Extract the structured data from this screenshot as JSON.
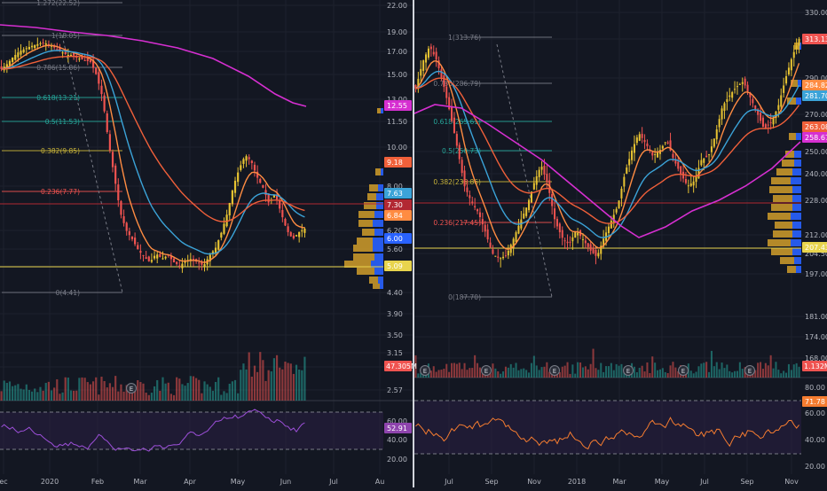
{
  "colors": {
    "bg": "#131722",
    "grid": "#1e222d",
    "divider": "#d1d4dc",
    "axisText": "#b2b5be",
    "up": "#26a69a",
    "down": "#ef5350",
    "candle_up": "#e6c232",
    "candle_down": "#ef5350",
    "ema_fast": "#ff8c42",
    "ema_mid": "#f0603a",
    "ema_slow": "#3ba3d8",
    "ma_long": "#d62fd1",
    "fib": "#787b86",
    "vp_up": "#c6962a",
    "vp_down": "#2962ff",
    "rsi": "#7e57c2",
    "rsi_band": "#2a1f44",
    "rsi_line_right": "#f57c30",
    "hline_red": "#b22833",
    "hline_yellow": "#e8d44d"
  },
  "icons": {
    "earnings": "earnings-e-icon"
  },
  "chart_data": [
    {
      "type": "candlestick",
      "name": "",
      "x_ticks": [
        "ec",
        "2020",
        "Feb",
        "Mar",
        "Apr",
        "May",
        "Jun",
        "Jul",
        "Au"
      ],
      "y_ticks": [
        "22.00",
        "19.00",
        "17.00",
        "15.00",
        "13.00",
        "11.50",
        "10.00",
        "8.00",
        "7.00",
        "6.20",
        "5.60",
        "5.00",
        "4.40",
        "3.90",
        "3.50",
        "3.15",
        "2.85",
        "2.57"
      ],
      "rsi_ticks": [
        "60.00",
        "40.00",
        "20.00"
      ],
      "fib_levels": [
        {
          "label": "1.272(22.52)",
          "value": 22.52
        },
        {
          "label": "1(18.05)",
          "value": 18.05
        },
        {
          "label": "0.786(15.86)",
          "value": 15.86
        },
        {
          "label": "0.618(13.21)",
          "value": 13.21
        },
        {
          "label": "0.5(11.53)",
          "value": 11.53
        },
        {
          "label": "0.382(9.85)",
          "value": 9.85
        },
        {
          "label": "0.236(7.77)",
          "value": 7.77
        },
        {
          "label": "0(4.41)",
          "value": 4.41
        }
      ],
      "price_badges": [
        {
          "text": "12.55",
          "color": "#d62fd1"
        },
        {
          "text": "9.18",
          "color": "#f0603a"
        },
        {
          "text": "7.63",
          "color": "#3ba3d8"
        },
        {
          "text": "7.30",
          "color": "#b22833"
        },
        {
          "text": "6.84",
          "color": "#ff8c42"
        },
        {
          "text": "6.00",
          "color": "#2962ff"
        },
        {
          "text": "5.09",
          "color": "#e8d44d"
        }
      ],
      "volume_badge": "47.305M",
      "rsi_badge": "52.91",
      "earnings_count": 1
    },
    {
      "type": "candlestick",
      "name": "",
      "x_ticks": [
        "Jul",
        "Sep",
        "Nov",
        "2018",
        "Mar",
        "May",
        "Jul",
        "Sep",
        "Nov"
      ],
      "y_ticks": [
        "330.00",
        "310.00",
        "290.00",
        "270.00",
        "250.00",
        "240.00",
        "228.00",
        "212.00",
        "204.50",
        "197.00",
        "181.00",
        "174.00",
        "168.00"
      ],
      "rsi_ticks": [
        "80.00",
        "60.00",
        "40.00",
        "20.00"
      ],
      "fib_levels": [
        {
          "label": "1(313.76)",
          "value": 313.76
        },
        {
          "label": "0.786(286.79)",
          "value": 286.79
        },
        {
          "label": "0.618(265.61)",
          "value": 265.61
        },
        {
          "label": "0.5(250.73)",
          "value": 250.73
        },
        {
          "label": "0.382(235.86)",
          "value": 235.86
        },
        {
          "label": "0.236(217.45)",
          "value": 217.45
        },
        {
          "label": "0(187.70)",
          "value": 187.7
        }
      ],
      "price_badges": [
        {
          "text": "313.13",
          "color": "#ef5350"
        },
        {
          "text": "284.82",
          "color": "#ff8c42"
        },
        {
          "text": "281.70",
          "color": "#3ba3d8"
        },
        {
          "text": "263.08",
          "color": "#f0603a"
        },
        {
          "text": "258.67",
          "color": "#d62fd1"
        },
        {
          "text": "207.43",
          "color": "#e8d44d"
        }
      ],
      "volume_badge": "1.132M",
      "rsi_badge": "71.78",
      "earnings_count": 6
    }
  ]
}
